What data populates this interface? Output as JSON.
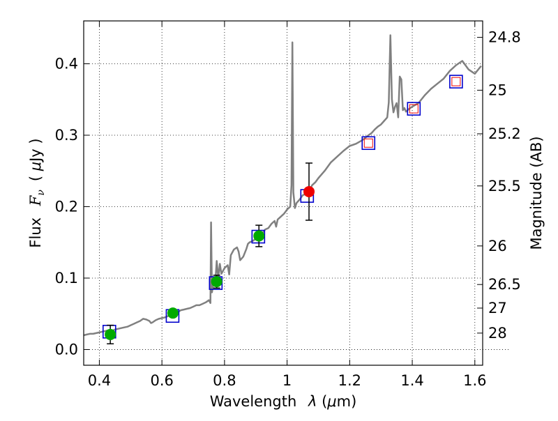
{
  "chart_data": {
    "type": "line",
    "xlabel": "Wavelength  λ (μm)",
    "ylabel": "Flux  F_ν  ( μJy )",
    "y2label": "Magnitude (AB)",
    "xlim": [
      0.35,
      1.625
    ],
    "ylim": [
      -0.022,
      0.46
    ],
    "grid": true,
    "x_ticks": [
      0.4,
      0.6,
      0.8,
      1.0,
      1.2,
      1.4,
      1.6
    ],
    "x_tick_labels": [
      "0.4",
      "0.6",
      "0.8",
      "1",
      "1.2",
      "1.4",
      "1.6"
    ],
    "y_ticks": [
      0.0,
      0.1,
      0.2,
      0.3,
      0.4
    ],
    "y_tick_labels": [
      "0.0",
      "0.1",
      "0.2",
      "0.3",
      "0.4"
    ],
    "y2_ticks": [
      {
        "label": "24.8",
        "flux": 0.437
      },
      {
        "label": "25",
        "flux": 0.363
      },
      {
        "label": "25.2",
        "flux": 0.302
      },
      {
        "label": "25.5",
        "flux": 0.229
      },
      {
        "label": "26",
        "flux": 0.145
      },
      {
        "label": "26.5",
        "flux": 0.091
      },
      {
        "label": "27",
        "flux": 0.058
      },
      {
        "label": "28",
        "flux": 0.023
      }
    ],
    "colors": {
      "template": "#808080",
      "model_box": "#0000cc",
      "photometry_green": "#00aa00",
      "photometry_red": "#ee0000",
      "upper_box": "#ee0000",
      "errorbar": "#000000"
    },
    "template_spectrum": {
      "x": [
        0.35,
        0.36,
        0.37,
        0.38,
        0.39,
        0.4,
        0.41,
        0.42,
        0.43,
        0.44,
        0.45,
        0.46,
        0.47,
        0.48,
        0.49,
        0.5,
        0.51,
        0.52,
        0.53,
        0.54,
        0.55,
        0.56,
        0.565,
        0.57,
        0.58,
        0.59,
        0.6,
        0.61,
        0.62,
        0.63,
        0.64,
        0.65,
        0.66,
        0.67,
        0.68,
        0.69,
        0.7,
        0.71,
        0.72,
        0.73,
        0.74,
        0.75,
        0.755,
        0.757,
        0.76,
        0.765,
        0.77,
        0.775,
        0.78,
        0.785,
        0.79,
        0.8,
        0.81,
        0.815,
        0.82,
        0.83,
        0.84,
        0.845,
        0.85,
        0.86,
        0.87,
        0.875,
        0.88,
        0.89,
        0.9,
        0.91,
        0.92,
        0.93,
        0.94,
        0.95,
        0.96,
        0.965,
        0.97,
        0.98,
        0.99,
        1.0,
        1.01,
        1.014,
        1.017,
        1.02,
        1.025,
        1.03,
        1.04,
        1.05,
        1.06,
        1.07,
        1.08,
        1.09,
        1.1,
        1.12,
        1.14,
        1.16,
        1.18,
        1.2,
        1.22,
        1.24,
        1.26,
        1.27,
        1.28,
        1.29,
        1.3,
        1.31,
        1.32,
        1.325,
        1.33,
        1.335,
        1.34,
        1.345,
        1.35,
        1.355,
        1.36,
        1.365,
        1.37,
        1.375,
        1.38,
        1.39,
        1.4,
        1.42,
        1.44,
        1.46,
        1.48,
        1.5,
        1.52,
        1.54,
        1.56,
        1.58,
        1.6,
        1.62
      ],
      "y": [
        0.02,
        0.021,
        0.022,
        0.022,
        0.023,
        0.024,
        0.025,
        0.026,
        0.027,
        0.026,
        0.028,
        0.029,
        0.03,
        0.031,
        0.032,
        0.034,
        0.036,
        0.038,
        0.04,
        0.043,
        0.042,
        0.04,
        0.037,
        0.038,
        0.041,
        0.043,
        0.044,
        0.045,
        0.047,
        0.049,
        0.048,
        0.052,
        0.055,
        0.056,
        0.057,
        0.058,
        0.06,
        0.062,
        0.062,
        0.064,
        0.066,
        0.069,
        0.065,
        0.178,
        0.08,
        0.095,
        0.09,
        0.124,
        0.1,
        0.12,
        0.106,
        0.114,
        0.118,
        0.105,
        0.132,
        0.14,
        0.143,
        0.137,
        0.125,
        0.13,
        0.141,
        0.148,
        0.15,
        0.152,
        0.155,
        0.16,
        0.162,
        0.168,
        0.17,
        0.176,
        0.18,
        0.172,
        0.182,
        0.186,
        0.19,
        0.196,
        0.2,
        0.23,
        0.43,
        0.22,
        0.198,
        0.205,
        0.21,
        0.216,
        0.218,
        0.222,
        0.23,
        0.234,
        0.24,
        0.25,
        0.262,
        0.27,
        0.278,
        0.285,
        0.288,
        0.293,
        0.3,
        0.303,
        0.308,
        0.312,
        0.315,
        0.32,
        0.325,
        0.346,
        0.44,
        0.35,
        0.332,
        0.34,
        0.345,
        0.325,
        0.382,
        0.378,
        0.335,
        0.338,
        0.333,
        0.337,
        0.34,
        0.345,
        0.356,
        0.365,
        0.372,
        0.379,
        0.39,
        0.398,
        0.404,
        0.392,
        0.386,
        0.397
      ]
    },
    "model_boxes": [
      {
        "x": 0.432,
        "y": 0.025
      },
      {
        "x": 0.634,
        "y": 0.047
      },
      {
        "x": 0.772,
        "y": 0.093
      },
      {
        "x": 0.908,
        "y": 0.158
      },
      {
        "x": 1.064,
        "y": 0.215
      },
      {
        "x": 1.26,
        "y": 0.289
      },
      {
        "x": 1.405,
        "y": 0.337
      },
      {
        "x": 1.54,
        "y": 0.375
      }
    ],
    "upper_boxes": [
      {
        "x": 1.26,
        "y": 0.289
      },
      {
        "x": 1.405,
        "y": 0.337
      },
      {
        "x": 1.54,
        "y": 0.375
      }
    ],
    "photometry": [
      {
        "x": 0.435,
        "y": 0.021,
        "err": 0.013,
        "color": "green"
      },
      {
        "x": 0.635,
        "y": 0.051,
        "err": 0.004,
        "color": "green"
      },
      {
        "x": 0.775,
        "y": 0.095,
        "err": 0.009,
        "color": "green"
      },
      {
        "x": 0.91,
        "y": 0.159,
        "err": 0.015,
        "color": "green"
      },
      {
        "x": 1.07,
        "y": 0.221,
        "err": 0.04,
        "color": "red"
      }
    ]
  }
}
